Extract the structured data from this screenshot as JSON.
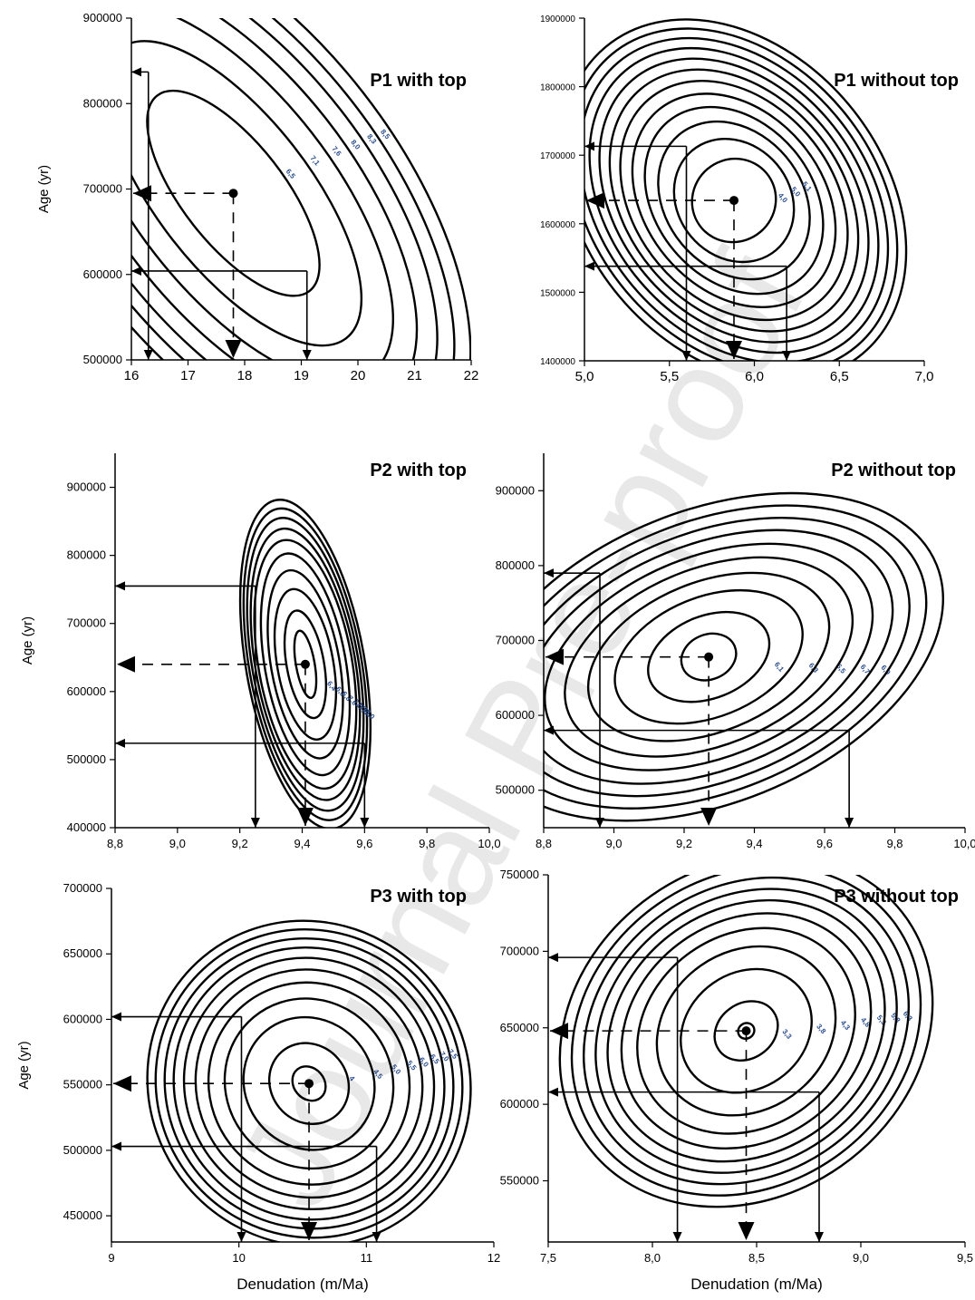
{
  "watermark": "Journal Pre-proof",
  "chart_data": [
    {
      "type": "contour",
      "title": "P1 with top",
      "ylabel": "Age (yr)",
      "xlabel": "",
      "xlim": [
        16,
        22
      ],
      "ylim": [
        500000,
        900000
      ],
      "x_ticks": [
        "16",
        "17",
        "18",
        "19",
        "20",
        "21",
        "22"
      ],
      "y_ticks": [
        "500000",
        "600000",
        "700000",
        "800000",
        "900000"
      ],
      "best_fit": {
        "x": 17.8,
        "y": 695000
      },
      "interval_x": [
        16.3,
        19.1
      ],
      "interval_y": [
        604000,
        837000
      ],
      "contours": [
        {
          "dx": 0.9,
          "dy": 145000,
          "label": "6,5"
        },
        {
          "dx": 1.35,
          "dy": 215000,
          "label": "7,1"
        },
        {
          "dx": 1.75,
          "dy": 265000,
          "label": "7,6"
        },
        {
          "dx": 2.1,
          "dy": 300000,
          "label": "8,0"
        },
        {
          "dx": 2.4,
          "dy": 330000,
          "label": "8,3"
        },
        {
          "dx": 2.65,
          "dy": 355000,
          "label": "8,5"
        },
        {
          "dx": 2.9,
          "dy": 378000,
          "label": ""
        }
      ]
    },
    {
      "type": "contour",
      "title": "P1 without top",
      "ylabel": "",
      "xlabel": "",
      "xlim": [
        5.0,
        7.0
      ],
      "ylim": [
        1400000,
        1900000
      ],
      "x_ticks": [
        "5,0",
        "5,5",
        "6,0",
        "6,5",
        "7,0"
      ],
      "y_ticks": [
        "1400000",
        "1500000",
        "1600000",
        "1700000",
        "1800000",
        "1900000"
      ],
      "best_fit": {
        "x": 5.88,
        "y": 1634000
      },
      "interval_x": [
        5.6,
        6.19
      ],
      "interval_y": [
        1538000,
        1713000
      ],
      "contours": [
        {
          "dx": 0.25,
          "dy": 60000,
          "label": "4,0"
        },
        {
          "dx": 0.33,
          "dy": 95000,
          "label": "5,0"
        },
        {
          "dx": 0.4,
          "dy": 125000,
          "label": "5,1"
        },
        {
          "dx": 0.46,
          "dy": 150000,
          "label": ""
        },
        {
          "dx": 0.52,
          "dy": 172000,
          "label": ""
        },
        {
          "dx": 0.58,
          "dy": 193000,
          "label": ""
        },
        {
          "dx": 0.63,
          "dy": 212000,
          "label": ""
        },
        {
          "dx": 0.68,
          "dy": 230000,
          "label": ""
        },
        {
          "dx": 0.73,
          "dy": 247000,
          "label": ""
        },
        {
          "dx": 0.78,
          "dy": 263000,
          "label": ""
        },
        {
          "dx": 0.83,
          "dy": 278000,
          "label": ""
        },
        {
          "dx": 0.88,
          "dy": 292000,
          "label": ""
        }
      ]
    },
    {
      "type": "contour",
      "title": "P2 with top",
      "ylabel": "Age (yr)",
      "xlabel": "",
      "xlim": [
        8.8,
        10.0
      ],
      "ylim": [
        400000,
        950000
      ],
      "x_ticks": [
        "8,8",
        "9,0",
        "9,2",
        "9,4",
        "9,6",
        "9,8",
        "10,0"
      ],
      "y_ticks": [
        "400000",
        "500000",
        "600000",
        "700000",
        "800000",
        "900000"
      ],
      "best_fit": {
        "x": 9.41,
        "y": 640000
      },
      "interval_x": [
        9.25,
        9.6
      ],
      "interval_y": [
        524000,
        755000
      ],
      "contours": [
        {
          "dx": 0.03,
          "dy": 50000,
          "label": ""
        },
        {
          "dx": 0.06,
          "dy": 80000,
          "label": "6,4"
        },
        {
          "dx": 0.09,
          "dy": 112000,
          "label": "6,6"
        },
        {
          "dx": 0.11,
          "dy": 140000,
          "label": "6,8"
        },
        {
          "dx": 0.13,
          "dy": 165000,
          "label": "7,0"
        },
        {
          "dx": 0.15,
          "dy": 185000,
          "label": "7,2"
        },
        {
          "dx": 0.16,
          "dy": 202000,
          "label": "7,4"
        },
        {
          "dx": 0.17,
          "dy": 218000,
          "label": "7,6"
        },
        {
          "dx": 0.18,
          "dy": 232000,
          "label": "7,8"
        },
        {
          "dx": 0.19,
          "dy": 245000,
          "label": "8,0"
        }
      ]
    },
    {
      "type": "contour",
      "title": "P2 without top",
      "ylabel": "",
      "xlabel": "",
      "xlim": [
        8.8,
        10.0
      ],
      "ylim": [
        450000,
        950000
      ],
      "x_ticks": [
        "8,8",
        "9,0",
        "9,2",
        "9,4",
        "9,6",
        "9,8",
        "10,0"
      ],
      "y_ticks": [
        "500000",
        "600000",
        "700000",
        "800000",
        "900000"
      ],
      "best_fit": {
        "x": 9.27,
        "y": 678000
      },
      "interval_x": [
        8.96,
        9.67
      ],
      "interval_y": [
        580000,
        790000
      ],
      "contours": [
        {
          "dx": 0.08,
          "dy": 30000,
          "label": ""
        },
        {
          "dx": 0.18,
          "dy": 55000,
          "label": "6,1"
        },
        {
          "dx": 0.28,
          "dy": 80000,
          "label": "6,3"
        },
        {
          "dx": 0.36,
          "dy": 100000,
          "label": "6,5"
        },
        {
          "dx": 0.43,
          "dy": 118000,
          "label": "6,7"
        },
        {
          "dx": 0.49,
          "dy": 134000,
          "label": "6,9"
        },
        {
          "dx": 0.55,
          "dy": 150000,
          "label": ""
        },
        {
          "dx": 0.6,
          "dy": 165000,
          "label": ""
        },
        {
          "dx": 0.65,
          "dy": 180000,
          "label": ""
        },
        {
          "dx": 0.7,
          "dy": 195000,
          "label": ""
        }
      ]
    },
    {
      "type": "contour",
      "title": "P3 with top",
      "ylabel": "Age (yr)",
      "xlabel": "Denudation (m/Ma)",
      "xlim": [
        9,
        12
      ],
      "ylim": [
        430000,
        700000
      ],
      "x_ticks": [
        "9",
        "10",
        "11",
        "12"
      ],
      "y_ticks": [
        "450000",
        "500000",
        "550000",
        "600000",
        "650000",
        "700000"
      ],
      "best_fit": {
        "x": 10.55,
        "y": 551000
      },
      "interval_x": [
        10.02,
        11.08
      ],
      "interval_y": [
        503000,
        602000
      ],
      "contours": [
        {
          "dx": 0.12,
          "dy": 14000,
          "label": ""
        },
        {
          "dx": 0.3,
          "dy": 32000,
          "label": "4"
        },
        {
          "dx": 0.5,
          "dy": 52000,
          "label": "4,5"
        },
        {
          "dx": 0.65,
          "dy": 66000,
          "label": "5,0"
        },
        {
          "dx": 0.78,
          "dy": 78000,
          "label": "5,5"
        },
        {
          "dx": 0.88,
          "dy": 88000,
          "label": "6,0"
        },
        {
          "dx": 0.97,
          "dy": 97000,
          "label": "6,5"
        },
        {
          "dx": 1.05,
          "dy": 105000,
          "label": "7,0"
        },
        {
          "dx": 1.12,
          "dy": 112000,
          "label": "7,5"
        },
        {
          "dx": 1.19,
          "dy": 119000,
          "label": ""
        },
        {
          "dx": 1.25,
          "dy": 126000,
          "label": ""
        }
      ]
    },
    {
      "type": "contour",
      "title": "P3 without top",
      "ylabel": "",
      "xlabel": "Denudation (m/Ma)",
      "xlim": [
        7.5,
        9.5
      ],
      "ylim": [
        510000,
        750000
      ],
      "x_ticks": [
        "7,5",
        "8,0",
        "8,5",
        "9,0",
        "9,5"
      ],
      "y_ticks": [
        "550000",
        "600000",
        "650000",
        "700000",
        "750000"
      ],
      "best_fit": {
        "x": 8.45,
        "y": 648000
      },
      "interval_x": [
        8.12,
        8.8
      ],
      "interval_y": [
        608000,
        696000
      ],
      "contours": [
        {
          "dx": 0.04,
          "dy": 5000,
          "label": ""
        },
        {
          "dx": 0.16,
          "dy": 18000,
          "label": "3,3"
        },
        {
          "dx": 0.33,
          "dy": 38000,
          "label": "3,8"
        },
        {
          "dx": 0.45,
          "dy": 52000,
          "label": "4,3"
        },
        {
          "dx": 0.55,
          "dy": 63000,
          "label": "4,8"
        },
        {
          "dx": 0.63,
          "dy": 72000,
          "label": "5,3"
        },
        {
          "dx": 0.7,
          "dy": 80000,
          "label": "5,8"
        },
        {
          "dx": 0.76,
          "dy": 87000,
          "label": "6,3"
        },
        {
          "dx": 0.82,
          "dy": 94000,
          "label": ""
        },
        {
          "dx": 0.88,
          "dy": 101000,
          "label": ""
        },
        {
          "dx": 0.94,
          "dy": 108000,
          "label": ""
        }
      ]
    }
  ]
}
